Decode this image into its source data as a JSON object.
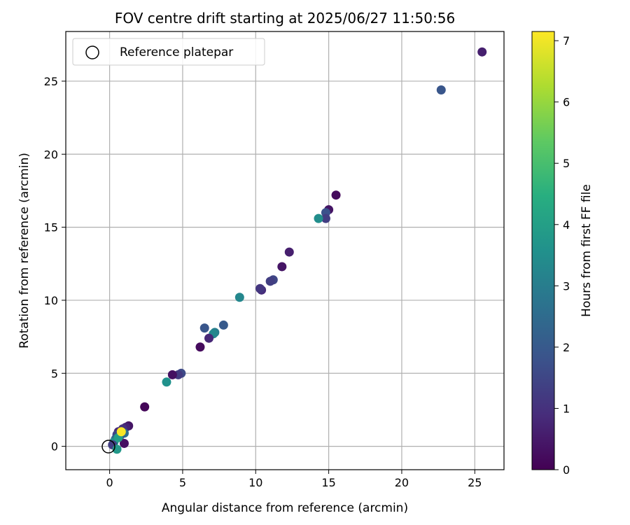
{
  "chart_data": {
    "type": "scatter",
    "title": "FOV centre drift starting at 2025/06/27 11:50:56",
    "xlabel": "Angular distance from reference (arcmin)",
    "ylabel": "Rotation from reference (arcmin)",
    "xlim": [
      -3,
      27
    ],
    "ylim": [
      -1.6,
      28.4
    ],
    "xticks": [
      0,
      5,
      10,
      15,
      20,
      25
    ],
    "yticks": [
      0,
      5,
      10,
      15,
      20,
      25
    ],
    "grid": true,
    "legend": {
      "placement": "top-left",
      "entries": [
        "Reference platepar"
      ]
    },
    "reference_point": {
      "x": 0,
      "y": 0,
      "label": "Reference platepar"
    },
    "colorbar": {
      "label": "Hours from first FF file",
      "colormap": "viridis",
      "range": [
        0,
        7.15
      ],
      "ticks": [
        0,
        1,
        2,
        3,
        4,
        5,
        6,
        7
      ]
    },
    "points": [
      {
        "x": 25.5,
        "y": 27.0,
        "hours": 0.6
      },
      {
        "x": 22.7,
        "y": 24.4,
        "hours": 1.9
      },
      {
        "x": 15.5,
        "y": 17.2,
        "hours": 0.2
      },
      {
        "x": 15.0,
        "y": 16.2,
        "hours": 0.4
      },
      {
        "x": 14.8,
        "y": 16.0,
        "hours": 1.8
      },
      {
        "x": 14.8,
        "y": 15.6,
        "hours": 1.3
      },
      {
        "x": 14.3,
        "y": 15.6,
        "hours": 3.5
      },
      {
        "x": 12.3,
        "y": 13.3,
        "hours": 0.6
      },
      {
        "x": 11.8,
        "y": 12.3,
        "hours": 0.4
      },
      {
        "x": 11.2,
        "y": 11.4,
        "hours": 1.5
      },
      {
        "x": 11.0,
        "y": 11.3,
        "hours": 1.3
      },
      {
        "x": 10.4,
        "y": 10.7,
        "hours": 0.9
      },
      {
        "x": 10.3,
        "y": 10.8,
        "hours": 1.1
      },
      {
        "x": 8.9,
        "y": 10.2,
        "hours": 3.3
      },
      {
        "x": 7.8,
        "y": 8.3,
        "hours": 2.0
      },
      {
        "x": 6.5,
        "y": 8.1,
        "hours": 1.9
      },
      {
        "x": 7.2,
        "y": 7.8,
        "hours": 3.0
      },
      {
        "x": 7.1,
        "y": 7.7,
        "hours": 3.3
      },
      {
        "x": 6.8,
        "y": 7.4,
        "hours": 0.8
      },
      {
        "x": 6.2,
        "y": 6.8,
        "hours": 0.2
      },
      {
        "x": 4.9,
        "y": 5.0,
        "hours": 1.6
      },
      {
        "x": 4.7,
        "y": 4.9,
        "hours": 1.2
      },
      {
        "x": 4.3,
        "y": 4.9,
        "hours": 0.3
      },
      {
        "x": 3.9,
        "y": 4.4,
        "hours": 3.6
      },
      {
        "x": 2.4,
        "y": 2.7,
        "hours": 0.1
      },
      {
        "x": 1.3,
        "y": 1.4,
        "hours": 0.4
      },
      {
        "x": 1.1,
        "y": 1.3,
        "hours": 0.7
      },
      {
        "x": 0.9,
        "y": 1.2,
        "hours": 1.0
      },
      {
        "x": 0.6,
        "y": 1.0,
        "hours": 0.8
      },
      {
        "x": 1.0,
        "y": 0.9,
        "hours": 2.6
      },
      {
        "x": 0.7,
        "y": 0.7,
        "hours": 1.9
      },
      {
        "x": 0.5,
        "y": 0.8,
        "hours": 1.5
      },
      {
        "x": 0.4,
        "y": 0.5,
        "hours": 2.3
      },
      {
        "x": 0.3,
        "y": 0.3,
        "hours": 3.4
      },
      {
        "x": 0.2,
        "y": 0.1,
        "hours": 1.3
      },
      {
        "x": 1.0,
        "y": 0.2,
        "hours": 0.3
      },
      {
        "x": 0.5,
        "y": -0.2,
        "hours": 3.8
      },
      {
        "x": 0.6,
        "y": 0.6,
        "hours": 4.0
      },
      {
        "x": 0.8,
        "y": 1.0,
        "hours": 7.1
      }
    ]
  }
}
